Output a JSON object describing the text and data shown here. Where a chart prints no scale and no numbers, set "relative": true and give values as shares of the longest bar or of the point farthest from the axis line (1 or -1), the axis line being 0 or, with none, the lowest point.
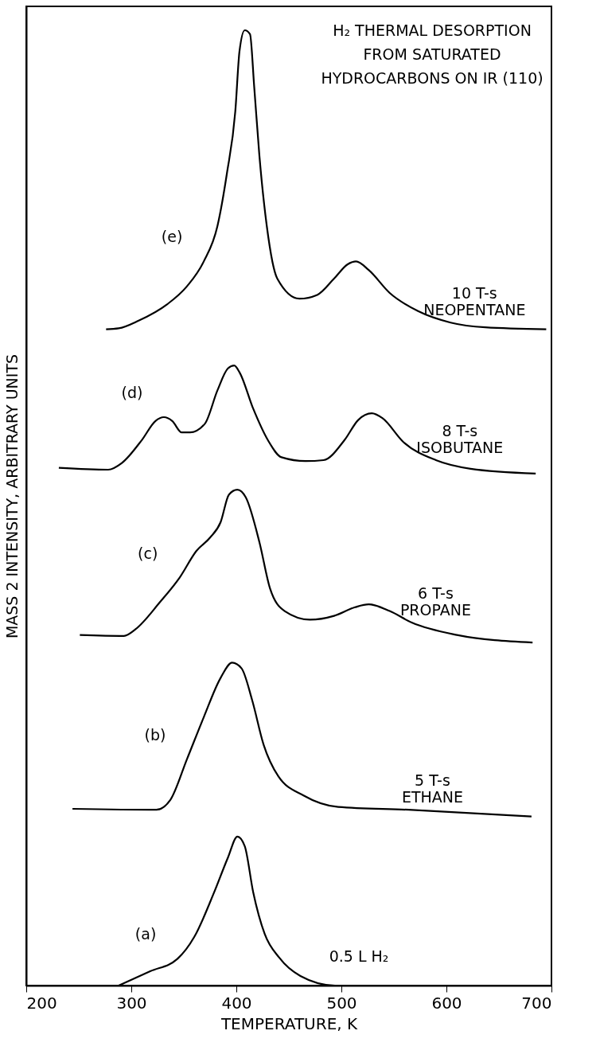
{
  "chart_data": {
    "type": "line",
    "relative": true,
    "title": "H₂ THERMAL DESORPTION\nFROM SATURATED\nHYDROCARBONS ON IR (110)",
    "xlabel": "TEMPERATURE, K",
    "ylabel": "MASS 2 INTENSITY, ARBITRARY UNITS",
    "xlim": [
      200,
      700
    ],
    "xticks": [
      200,
      300,
      400,
      500,
      600,
      700
    ],
    "grid": false,
    "legend": false,
    "series": [
      {
        "name": "0.5 L H₂",
        "color": "#000000",
        "x": [
          288,
          318,
          344,
          360,
          379,
          392,
          401,
          408,
          416,
          427,
          441,
          461,
          494,
          694
        ],
        "values": [
          0,
          0.015,
          0.028,
          0.051,
          0.098,
          0.134,
          0.156,
          0.146,
          0.098,
          0.054,
          0.029,
          0.01,
          0,
          0
        ]
      },
      {
        "name": "5 T-s\nETHANE",
        "color": "#000000",
        "x": [
          244,
          324,
          337,
          353,
          369,
          385,
          396,
          405,
          415,
          426,
          440,
          464,
          497,
          564,
          681
        ],
        "values": [
          0.185,
          0.184,
          0.194,
          0.237,
          0.281,
          0.322,
          0.338,
          0.332,
          0.299,
          0.252,
          0.219,
          0.199,
          0.187,
          0.184,
          0.177
        ]
      },
      {
        "name": "6 T-s\nPROPANE",
        "color": "#000000",
        "x": [
          251,
          293,
          304,
          327,
          346,
          362,
          375,
          385,
          393,
          401,
          409,
          422,
          432,
          446,
          470,
          493,
          513,
          526,
          546,
          567,
          610,
          682
        ],
        "values": [
          0.367,
          0.366,
          0.373,
          0.401,
          0.427,
          0.455,
          0.469,
          0.485,
          0.514,
          0.519,
          0.511,
          0.464,
          0.416,
          0.392,
          0.383,
          0.387,
          0.396,
          0.399,
          0.392,
          0.38,
          0.367,
          0.359
        ]
      },
      {
        "name": "8 T-s\nISOBUTANE",
        "color": "#000000",
        "x": [
          231,
          278,
          291,
          310,
          323,
          331,
          339,
          348,
          356,
          370,
          382,
          392,
          398,
          403,
          416,
          430,
          443,
          466,
          483,
          503,
          516,
          529,
          539,
          559,
          590,
          623,
          685
        ],
        "values": [
          0.542,
          0.54,
          0.547,
          0.571,
          0.591,
          0.595,
          0.591,
          0.579,
          0.579,
          0.588,
          0.623,
          0.646,
          0.649,
          0.642,
          0.604,
          0.571,
          0.553,
          0.549,
          0.55,
          0.571,
          0.592,
          0.599,
          0.594,
          0.569,
          0.55,
          0.541,
          0.536
        ]
      },
      {
        "name": "10 T-s\nNEOPENTANE",
        "color": "#000000",
        "x": [
          276,
          288,
          307,
          334,
          353,
          369,
          382,
          391,
          399,
          403,
          408,
          413,
          417,
          422,
          429,
          439,
          460,
          477,
          493,
          506,
          514,
          526,
          546,
          573,
          604,
          637,
          695
        ],
        "values": [
          0.687,
          0.688,
          0.696,
          0.713,
          0.732,
          0.758,
          0.795,
          0.85,
          0.915,
          0.978,
          1.0,
          0.996,
          0.941,
          0.868,
          0.795,
          0.74,
          0.719,
          0.723,
          0.74,
          0.755,
          0.758,
          0.749,
          0.725,
          0.706,
          0.694,
          0.689,
          0.687
        ]
      }
    ],
    "annotations": [
      "(a)",
      "(b)",
      "(c)",
      "(d)",
      "(e)"
    ]
  }
}
